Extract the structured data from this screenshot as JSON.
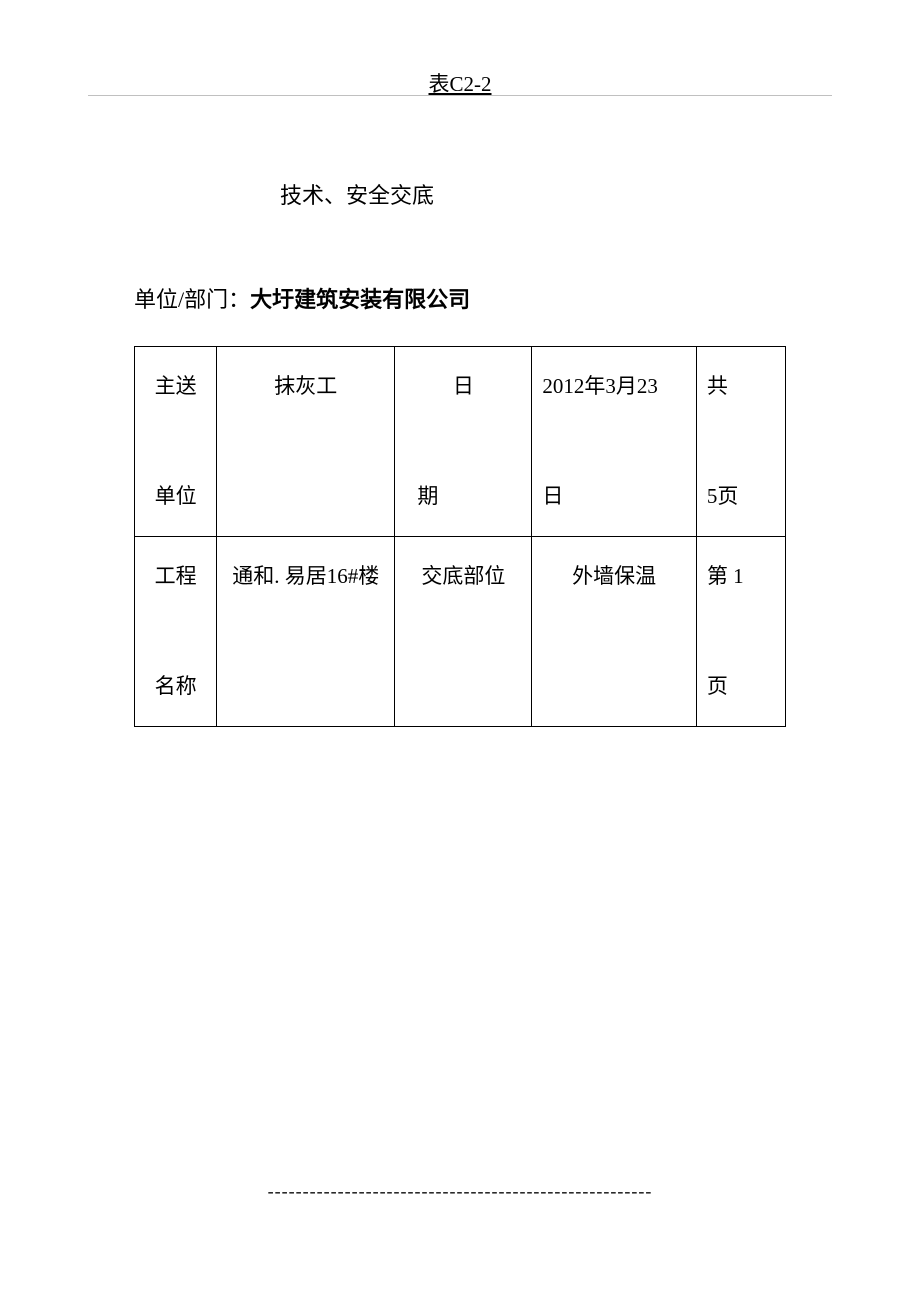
{
  "header": {
    "form_number": "表C2-2"
  },
  "title": "技术、安全交底",
  "department": {
    "label": "单位/部门：",
    "value": "大圩建筑安装有限公司"
  },
  "table": {
    "border_color": "#000000",
    "background_color": "#ffffff",
    "font_size": 21,
    "rows": [
      {
        "cells": [
          {
            "line1": "主送",
            "line2": "单位",
            "align": "center"
          },
          {
            "line1": "抹灰工",
            "line2": "",
            "align": "center"
          },
          {
            "line1": "日",
            "line2": "期",
            "align": "center_left"
          },
          {
            "line1": "2012年3月23",
            "line2": "日",
            "align": "left"
          },
          {
            "line1": "共",
            "line2": "5页",
            "align": "left"
          }
        ]
      },
      {
        "cells": [
          {
            "line1": "工程",
            "line2": "名称",
            "align": "center"
          },
          {
            "line1": "通和. 易居16#楼",
            "line2": "",
            "align": "center"
          },
          {
            "line1": "交底部位",
            "line2": "",
            "align": "center"
          },
          {
            "line1": "外墙保温",
            "line2": "",
            "align": "center"
          },
          {
            "line1": "第 1",
            "line2": "页",
            "align": "left"
          }
        ]
      }
    ]
  },
  "footer": {
    "dashes": "-------------------------------------------------------"
  },
  "colors": {
    "page_background": "#ffffff",
    "text": "#000000",
    "header_line": "#c0c0c0",
    "border": "#000000"
  }
}
